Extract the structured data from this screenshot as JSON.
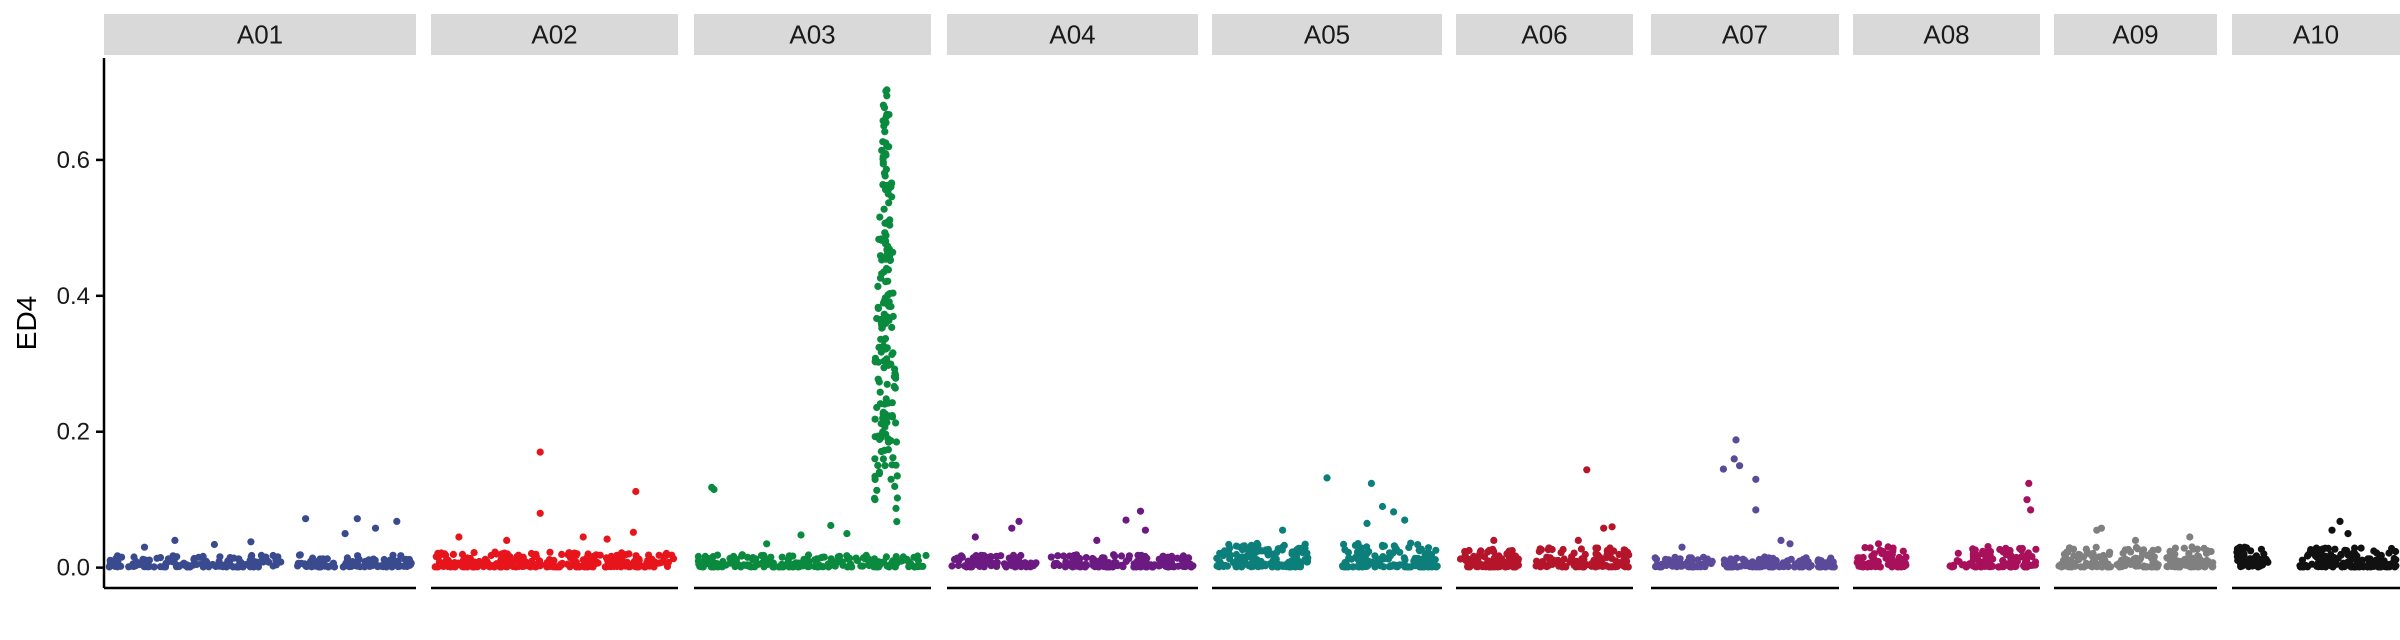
{
  "chart_data": {
    "type": "scatter",
    "title": "",
    "xlabel": "",
    "ylabel": "ED4",
    "ylim": [
      -0.03,
      0.75
    ],
    "yticks": [
      0.0,
      0.2,
      0.4,
      0.6
    ],
    "ytick_labels": [
      "0.0",
      "0.2",
      "0.4",
      "0.6"
    ],
    "grid": false,
    "legend": "none",
    "facet_strip_color": "#d9d9d9",
    "panels": [
      {
        "name": "A01",
        "color": "#3a4a8f",
        "xrange": [
          0,
          100
        ],
        "gaps": [
          [
            57,
            61
          ]
        ],
        "outliers": [
          [
            65,
            0.072
          ],
          [
            22,
            0.04
          ],
          [
            47,
            0.038
          ],
          [
            78,
            0.05
          ],
          [
            82,
            0.072
          ],
          [
            88,
            0.058
          ],
          [
            95,
            0.068
          ],
          [
            12,
            0.03
          ],
          [
            35,
            0.034
          ]
        ],
        "n": 240,
        "spread": 0.018
      },
      {
        "name": "A02",
        "color": "#e8141c",
        "xrange": [
          0,
          100
        ],
        "gaps": [],
        "outliers": [
          [
            44,
            0.17
          ],
          [
            44,
            0.08
          ],
          [
            84,
            0.112
          ],
          [
            83,
            0.052
          ],
          [
            10,
            0.045
          ],
          [
            30,
            0.04
          ],
          [
            62,
            0.045
          ],
          [
            72,
            0.042
          ]
        ],
        "n": 260,
        "spread": 0.022
      },
      {
        "name": "A03",
        "color": "#0a8a3e",
        "xrange": [
          0,
          100
        ],
        "gaps": [],
        "peak": {
          "center": 82,
          "width": 3.6,
          "height": 0.72
        },
        "outliers": [
          [
            6,
            0.118
          ],
          [
            7,
            0.115
          ],
          [
            45,
            0.048
          ],
          [
            30,
            0.035
          ],
          [
            58,
            0.062
          ],
          [
            65,
            0.05
          ]
        ],
        "n": 200,
        "peak_n": 190,
        "spread": 0.018
      },
      {
        "name": "A04",
        "color": "#6a1a80",
        "xrange": [
          0,
          100
        ],
        "gaps": [
          [
            36,
            40
          ]
        ],
        "outliers": [
          [
            10,
            0.045
          ],
          [
            25,
            0.058
          ],
          [
            28,
            0.068
          ],
          [
            72,
            0.07
          ],
          [
            78,
            0.083
          ],
          [
            80,
            0.055
          ],
          [
            60,
            0.04
          ]
        ],
        "n": 220,
        "spread": 0.018
      },
      {
        "name": "A05",
        "color": "#0d7f7a",
        "xrange": [
          0,
          100
        ],
        "gaps": [
          [
            42,
            57
          ]
        ],
        "outliers": [
          [
            50,
            0.132
          ],
          [
            70,
            0.124
          ],
          [
            75,
            0.09
          ],
          [
            80,
            0.082
          ],
          [
            30,
            0.055
          ],
          [
            85,
            0.07
          ],
          [
            68,
            0.065
          ]
        ],
        "n": 260,
        "spread": 0.035
      },
      {
        "name": "A06",
        "color": "#b5152b",
        "xrange": [
          0,
          100
        ],
        "gaps": [
          [
            35,
            45
          ]
        ],
        "outliers": [
          [
            75,
            0.144
          ],
          [
            85,
            0.058
          ],
          [
            90,
            0.06
          ],
          [
            20,
            0.04
          ],
          [
            70,
            0.04
          ]
        ],
        "n": 200,
        "spread": 0.028
      },
      {
        "name": "A07",
        "color": "#5b4a9a",
        "xrange": [
          0,
          100
        ],
        "gaps": [
          [
            33,
            38
          ]
        ],
        "outliers": [
          [
            45,
            0.188
          ],
          [
            44,
            0.16
          ],
          [
            56,
            0.13
          ],
          [
            56,
            0.085
          ],
          [
            38,
            0.145
          ],
          [
            47,
            0.15
          ],
          [
            70,
            0.04
          ],
          [
            75,
            0.035
          ],
          [
            15,
            0.03
          ]
        ],
        "n": 180,
        "spread": 0.015
      },
      {
        "name": "A08",
        "color": "#a8105c",
        "xrange": [
          0,
          100
        ],
        "gaps": [
          [
            28,
            52
          ]
        ],
        "outliers": [
          [
            96,
            0.124
          ],
          [
            95,
            0.1
          ],
          [
            97,
            0.085
          ],
          [
            12,
            0.035
          ],
          [
            65,
            0.02
          ]
        ],
        "n": 170,
        "spread": 0.03
      },
      {
        "name": "A09",
        "color": "#808080",
        "xrange": [
          0,
          100
        ],
        "gaps": [
          [
            34,
            38
          ],
          [
            66,
            70
          ]
        ],
        "outliers": [
          [
            25,
            0.055
          ],
          [
            28,
            0.058
          ],
          [
            50,
            0.04
          ],
          [
            85,
            0.045
          ]
        ],
        "n": 200,
        "spread": 0.03
      },
      {
        "name": "A10",
        "color": "#111111",
        "xrange": [
          0,
          100
        ],
        "gaps": [
          [
            20,
            40
          ]
        ],
        "outliers": [
          [
            65,
            0.068
          ],
          [
            60,
            0.055
          ],
          [
            70,
            0.05
          ],
          [
            5,
            0.02
          ],
          [
            15,
            0.012
          ]
        ],
        "n": 180,
        "spread": 0.03
      }
    ]
  }
}
